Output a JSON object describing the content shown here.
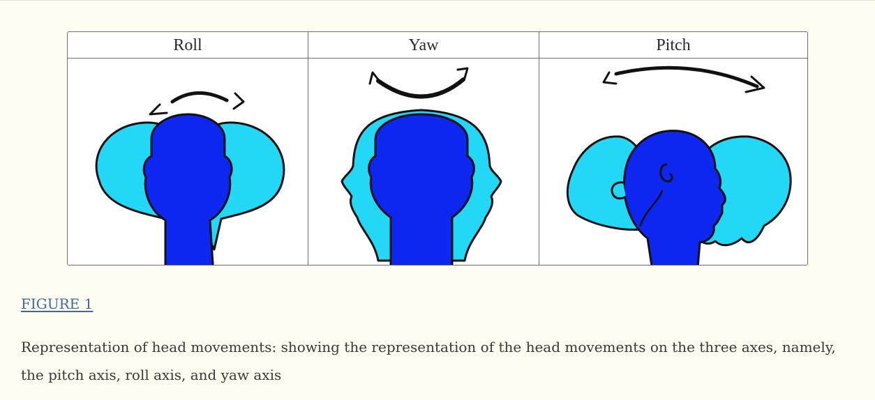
{
  "figure": {
    "panels": [
      {
        "label": "Roll"
      },
      {
        "label": "Yaw"
      },
      {
        "label": "Pitch"
      }
    ],
    "link_label": "FIGURE 1",
    "caption": "Representation of head movements: showing the representation of the head movements on the three axes, namely, the pitch axis, roll axis, and yaw axis"
  },
  "colors": {
    "head_dark": "#0d27f0",
    "head_light": "#22d8f6",
    "outline": "#111111",
    "link": "#3a6a9e",
    "page_background": "#fefdf1"
  }
}
